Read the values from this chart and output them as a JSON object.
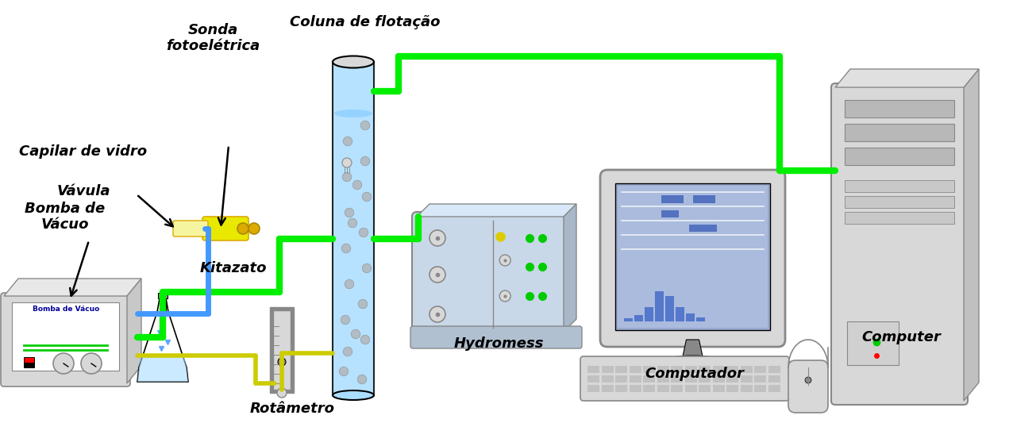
{
  "title": "",
  "bg_color": "#ffffff",
  "labels": {
    "sonda": "Sonda\nfotoelétrica",
    "coluna": "Coluna de flotação",
    "capilar": "Capilar de vidro",
    "valvula": "Vávula",
    "bomba_label": "Bomba de\nVácuo",
    "kitazato": "Kitazato",
    "rotametro": "Rotâmetro",
    "hydromess": "Hydromess",
    "computador": "Computador",
    "computer": "Computer",
    "bomba_device": "Bomba de Vácuo"
  },
  "colors": {
    "green_tube": "#00ee00",
    "blue_tube": "#4499ff",
    "yellow_tube": "#cccc00",
    "light_blue": "#aaddff",
    "gray": "#b0b0b0",
    "dark_gray": "#888888",
    "light_gray": "#d8d8d8",
    "gold": "#ddaa00",
    "bubble": "#b0b0b0",
    "water": "#aaddff",
    "device_bg": "#ccddee",
    "screen_bg": "#99aacc",
    "text_color": "#000000"
  }
}
